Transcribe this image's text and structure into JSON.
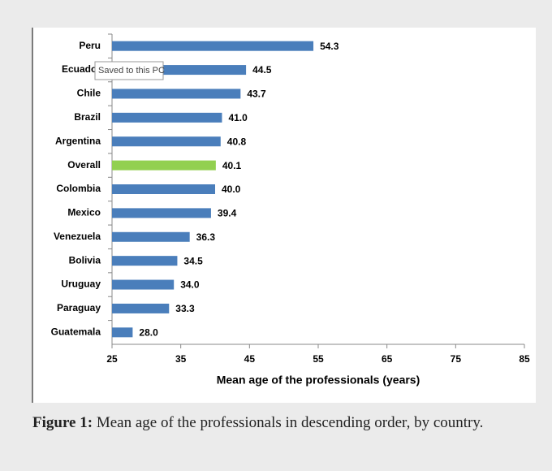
{
  "chart_data": {
    "type": "barh",
    "categories": [
      "Peru",
      "Ecuador",
      "Chile",
      "Brazil",
      "Argentina",
      "Overall",
      "Colombia",
      "Mexico",
      "Venezuela",
      "Bolivia",
      "Uruguay",
      "Paraguay",
      "Guatemala"
    ],
    "values": [
      54.3,
      44.5,
      43.7,
      41.0,
      40.8,
      40.1,
      40.0,
      39.4,
      36.3,
      34.5,
      34.0,
      33.3,
      28.0
    ],
    "value_labels": [
      "54.3",
      "44.5",
      "43.7",
      "41.0",
      "40.8",
      "40.1",
      "40.0",
      "39.4",
      "36.3",
      "34.5",
      "34.0",
      "33.3",
      "28.0"
    ],
    "colors": [
      "#4a7ebb",
      "#4a7ebb",
      "#4a7ebb",
      "#4a7ebb",
      "#4a7ebb",
      "#92d050",
      "#4a7ebb",
      "#4a7ebb",
      "#4a7ebb",
      "#4a7ebb",
      "#4a7ebb",
      "#4a7ebb",
      "#4a7ebb"
    ],
    "xlabel": "Mean age of the professionals (years)",
    "xlim": [
      25,
      85
    ],
    "xticks": [
      25,
      35,
      45,
      55,
      65,
      75,
      85
    ],
    "tooltip": "Saved to this PC"
  },
  "caption": {
    "label": "Figure 1:",
    "text": "Mean age of the professionals in descending order, by country."
  }
}
